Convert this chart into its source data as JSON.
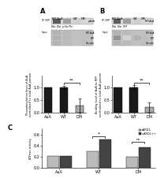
{
  "panel_A_label": "A",
  "panel_B_label": "B",
  "panel_C_label": "C",
  "blot_A": {
    "ip_label": "IP: RFP",
    "blot_label": "Blot: p-Ser/Thr",
    "header": [
      "BFP-AuA",
      "-",
      "WT",
      "DM"
    ],
    "ip_row_label": "p-AuA",
    "ip_bands": [
      0.85,
      0.5,
      0.25
    ],
    "input_rows": [
      {
        "label": "RFP-AuA",
        "bands": [
          0.5,
          0.45,
          0.4
        ]
      },
      {
        "label": "RFP",
        "bands": [
          0.5,
          0.45,
          0.4
        ]
      },
      {
        "label": "Vinculin",
        "bands": [
          0.5,
          0.45,
          0.4
        ]
      }
    ]
  },
  "blot_B": {
    "ip_label": "IP: RFP",
    "blot_label": "Blot: RFP",
    "header": [
      "BFP-AuA",
      "-",
      "WT",
      "DM"
    ],
    "ip_row_label": "RFP-AuA",
    "ip_bands": [
      0.85,
      0.5,
      0.25
    ],
    "input_rows": [
      {
        "label": "RFP-AuA",
        "bands": [
          0.5,
          0.45,
          0.4
        ]
      },
      {
        "label": "RFP",
        "bands": [
          0.7,
          0.3,
          0.5
        ]
      },
      {
        "label": "Vinculin",
        "bands": [
          0.5,
          0.45,
          0.4
        ]
      }
    ]
  },
  "panel_A": {
    "bar_categories": [
      "AuA",
      "WT",
      "DM"
    ],
    "bar_values": [
      1.0,
      1.0,
      0.28
    ],
    "bar_errors": [
      0.0,
      0.06,
      0.28
    ],
    "bar_colors": [
      "#1a1a1a",
      "#1a1a1a",
      "#aaaaaa"
    ],
    "ylabel": "Phosphorylation level of AuA\nnormalized to total AuA protein",
    "ylim": [
      0,
      1.45
    ],
    "yticks": [
      0.0,
      0.5,
      1.0
    ]
  },
  "panel_B": {
    "bar_categories": [
      "AuA",
      "WT",
      "DM"
    ],
    "bar_values": [
      1.0,
      1.0,
      0.22
    ],
    "bar_errors": [
      0.0,
      0.09,
      0.2
    ],
    "bar_colors": [
      "#1a1a1a",
      "#1a1a1a",
      "#aaaaaa"
    ],
    "ylabel": "Binding level of AuA to RFP\nnormalized to total AuA protein",
    "ylim": [
      0,
      1.45
    ],
    "yticks": [
      0.0,
      0.5,
      1.0
    ]
  },
  "panel_C": {
    "group_categories": [
      "AuA",
      "WT",
      "DM"
    ],
    "series": [
      {
        "name": "sARD1-",
        "color": "#bbbbbb",
        "values": [
          0.22,
          0.3,
          0.2
        ]
      },
      {
        "name": "s-ARD1++",
        "color": "#444444",
        "values": [
          0.22,
          0.52,
          0.38
        ]
      }
    ],
    "ylabel": "ATPase activity",
    "ylim": [
      0,
      0.72
    ],
    "yticks": [
      0.0,
      0.2,
      0.4,
      0.6
    ]
  },
  "background_color": "#ffffff",
  "text_color": "#000000",
  "font_size": 4.0
}
